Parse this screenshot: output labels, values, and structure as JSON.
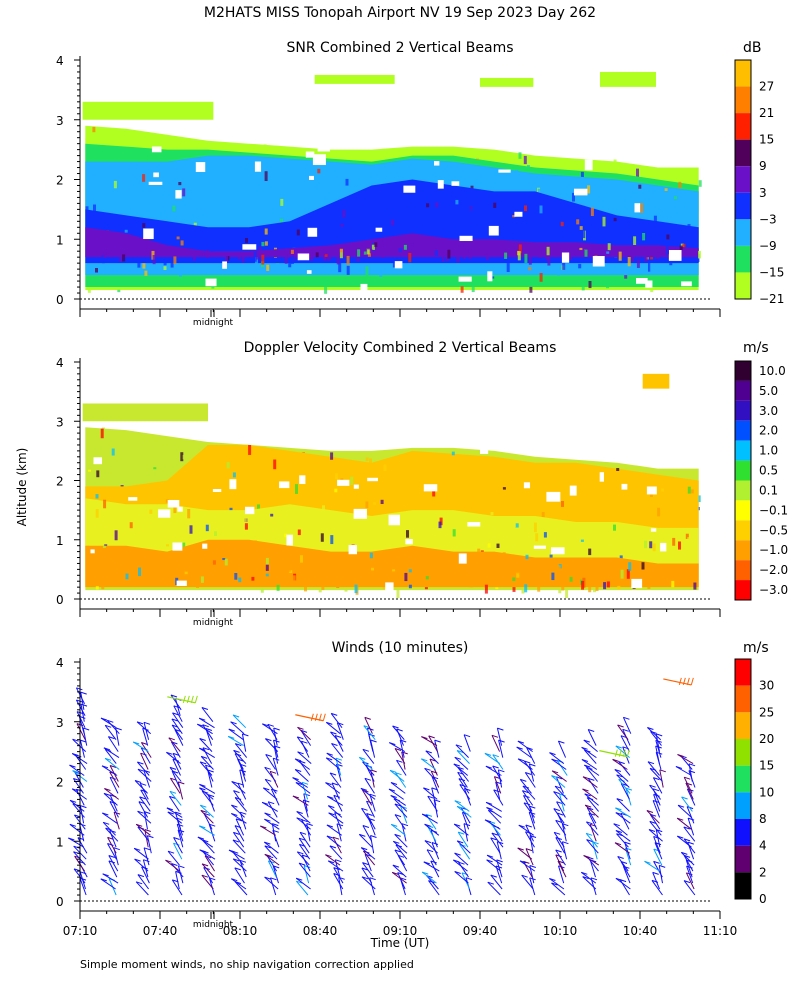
{
  "title": "M2HATS MISS Tonopah Airport NV  19 Sep 2023 Day 262",
  "footnote": "Simple moment winds, no ship navigation correction applied",
  "colors": {
    "background": "#ffffff",
    "axis": "#000000"
  },
  "chart_data": [
    {
      "id": "snr",
      "type": "heatmap",
      "title": "SNR Combined 2 Vertical Beams",
      "ylabel": "Altitude (km)",
      "ylim": [
        0,
        4
      ],
      "yticks": [
        "0",
        "1",
        "2",
        "3",
        "4"
      ],
      "xlim_minutes_utc": [
        430,
        670
      ],
      "marker_label": "midnight",
      "unit": "dB",
      "colorbar": {
        "labels": [
          "27",
          "21",
          "15",
          "9",
          "3",
          "−3",
          "−9",
          "−15",
          "−21"
        ],
        "colors": [
          "#ffbf00",
          "#ff8000",
          "#ff2000",
          "#50005a",
          "#6a10c8",
          "#1030ff",
          "#20b0ff",
          "#20e060",
          "#b0ff20"
        ]
      },
      "layers": [
        {
          "label": "SNR −21 to −15 dB",
          "color": "#b0ff20",
          "base_km": 0.15,
          "top_km": [
            2.9,
            2.85,
            2.75,
            2.65,
            2.6,
            2.55,
            2.5,
            2.5,
            2.55,
            2.55,
            2.5,
            2.4,
            2.35,
            2.3,
            2.2,
            2.2
          ]
        },
        {
          "label": "SNR −15 to −9 dB",
          "color": "#20e060",
          "base_km": 0.2,
          "top_km": [
            2.6,
            2.55,
            2.5,
            2.5,
            2.45,
            2.4,
            2.35,
            2.3,
            2.4,
            2.4,
            2.3,
            2.2,
            2.15,
            2.1,
            2.0,
            1.9
          ]
        },
        {
          "label": "SNR −9 to −3 dB",
          "color": "#20b0ff",
          "base_km": 0.4,
          "top_km": [
            2.3,
            2.3,
            2.3,
            2.4,
            2.4,
            2.35,
            2.3,
            2.25,
            2.35,
            2.3,
            2.2,
            2.1,
            2.05,
            2.0,
            1.9,
            1.8
          ]
        },
        {
          "label": "SNR −3 to 3 dB",
          "color": "#1030ff",
          "base_km": 0.6,
          "top_km": [
            1.5,
            1.4,
            1.3,
            1.2,
            1.2,
            1.3,
            1.6,
            1.9,
            2.0,
            1.9,
            1.8,
            1.8,
            1.6,
            1.4,
            1.3,
            1.2
          ]
        },
        {
          "label": "SNR 3 to 9 dB",
          "color": "#6a10c8",
          "base_km": 0.7,
          "top_km": [
            1.2,
            1.1,
            0.9,
            0.8,
            0.8,
            0.85,
            0.9,
            1.0,
            1.1,
            1.0,
            1.0,
            0.95,
            0.95,
            0.9,
            0.9,
            0.85
          ]
        }
      ],
      "elevated_patches": [
        {
          "x_minutes": [
            431,
            480
          ],
          "bottom_km": 3.0,
          "top_km": 3.3,
          "color": "#b0ff20"
        },
        {
          "x_minutes": [
            625,
            646
          ],
          "bottom_km": 3.55,
          "top_km": 3.8,
          "color": "#b0ff20"
        },
        {
          "x_minutes": [
            518,
            548
          ],
          "bottom_km": 3.6,
          "top_km": 3.75,
          "color": "#b0ff20"
        },
        {
          "x_minutes": [
            580,
            600
          ],
          "bottom_km": 3.55,
          "top_km": 3.7,
          "color": "#b0ff20"
        }
      ]
    },
    {
      "id": "doppler",
      "type": "heatmap",
      "title": "Doppler Velocity Combined 2 Vertical Beams",
      "ylabel": "Altitude (km)",
      "ylim": [
        0,
        4
      ],
      "yticks": [
        "0",
        "1",
        "2",
        "3",
        "4"
      ],
      "xlim_minutes_utc": [
        430,
        670
      ],
      "marker_label": "midnight",
      "unit": "m/s",
      "colorbar": {
        "labels": [
          "10.0",
          "5.0",
          "3.0",
          "2.0",
          "1.0",
          "0.5",
          "0.1",
          "−0.1",
          "−0.5",
          "−1.0",
          "−2.0",
          "−3.0"
        ],
        "colors": [
          "#300030",
          "#500090",
          "#3010c0",
          "#0050ff",
          "#00c0ff",
          "#30e030",
          "#b0f030",
          "#ffff00",
          "#ffd000",
          "#ffa000",
          "#ff6000",
          "#ff0000"
        ]
      },
      "layers": [
        {
          "label": "−0.1 to −0.5 m/s",
          "color": "#c8e830",
          "base_km": 0.15,
          "top_km": [
            2.9,
            2.85,
            2.75,
            2.65,
            2.6,
            2.55,
            2.5,
            2.5,
            2.55,
            2.55,
            2.5,
            2.4,
            2.35,
            2.3,
            2.2,
            2.2
          ]
        },
        {
          "label": "−0.5 to −1.0 m/s",
          "color": "#ffc400",
          "base_km": 0.2,
          "top_km": [
            1.9,
            1.9,
            2.0,
            2.6,
            2.6,
            2.5,
            2.4,
            2.3,
            2.5,
            2.45,
            2.4,
            2.3,
            2.3,
            2.2,
            2.1,
            2.0
          ]
        },
        {
          "label": "−0.1 to 0.1 m/s",
          "color": "#e8f020",
          "base_km": 0.3,
          "top_km": [
            1.7,
            1.6,
            1.6,
            1.5,
            1.5,
            1.6,
            1.5,
            1.4,
            1.5,
            1.5,
            1.4,
            1.4,
            1.3,
            1.3,
            1.2,
            1.2
          ]
        },
        {
          "label": "−1.0 to −2.0 m/s",
          "color": "#ffa000",
          "base_km": 0.2,
          "top_km": [
            0.9,
            0.9,
            0.8,
            1.0,
            1.0,
            0.9,
            0.8,
            0.8,
            0.9,
            0.8,
            0.8,
            0.7,
            0.7,
            0.7,
            0.6,
            0.6
          ]
        }
      ],
      "elevated_patches": [
        {
          "x_minutes": [
            431,
            478
          ],
          "bottom_km": 3.0,
          "top_km": 3.3,
          "color": "#c8e830"
        },
        {
          "x_minutes": [
            641,
            651
          ],
          "bottom_km": 3.55,
          "top_km": 3.8,
          "color": "#ffc400"
        }
      ]
    },
    {
      "id": "winds",
      "type": "scatter",
      "title": "Winds (10 minutes)",
      "ylabel": "Altitude (km)",
      "xlabel": "Time (UT)",
      "ylim": [
        0,
        4
      ],
      "yticks": [
        "0",
        "1",
        "2",
        "3",
        "4"
      ],
      "xlim_minutes_utc": [
        430,
        670
      ],
      "xticks": [
        "07:10",
        "07:40",
        "08:10",
        "08:40",
        "09:10",
        "09:40",
        "10:10",
        "10:40",
        "11:10"
      ],
      "marker_label": "midnight",
      "unit": "m/s",
      "colorbar": {
        "labels": [
          "30",
          "25",
          "20",
          "15",
          "10",
          "8",
          "4",
          "2",
          "0"
        ],
        "colors": [
          "#ff0000",
          "#ff6000",
          "#ffb000",
          "#90e000",
          "#20e060",
          "#00a0ff",
          "#1010ff",
          "#600070",
          "#000000"
        ]
      },
      "profile_times_minutes": [
        432,
        444,
        456,
        468,
        480,
        492,
        504,
        516,
        528,
        540,
        552,
        564,
        576,
        588,
        600,
        612,
        624,
        636,
        648,
        660
      ],
      "profile_top_km": [
        3.4,
        3.0,
        2.9,
        3.3,
        3.1,
        3.0,
        2.9,
        2.8,
        3.0,
        2.9,
        2.8,
        2.7,
        2.6,
        2.7,
        2.6,
        2.5,
        2.7,
        2.9,
        2.8,
        2.4
      ],
      "barb_spacing_km": 0.1,
      "typical_speed_ms": 6,
      "notable_barbs": [
        {
          "time_minutes": 516,
          "height_km": 3.05,
          "speed_ms": 26
        },
        {
          "time_minutes": 654,
          "height_km": 3.65,
          "speed_ms": 28
        },
        {
          "time_minutes": 630,
          "height_km": 2.45,
          "speed_ms": 17
        },
        {
          "time_minutes": 468,
          "height_km": 3.35,
          "speed_ms": 17
        }
      ]
    }
  ]
}
